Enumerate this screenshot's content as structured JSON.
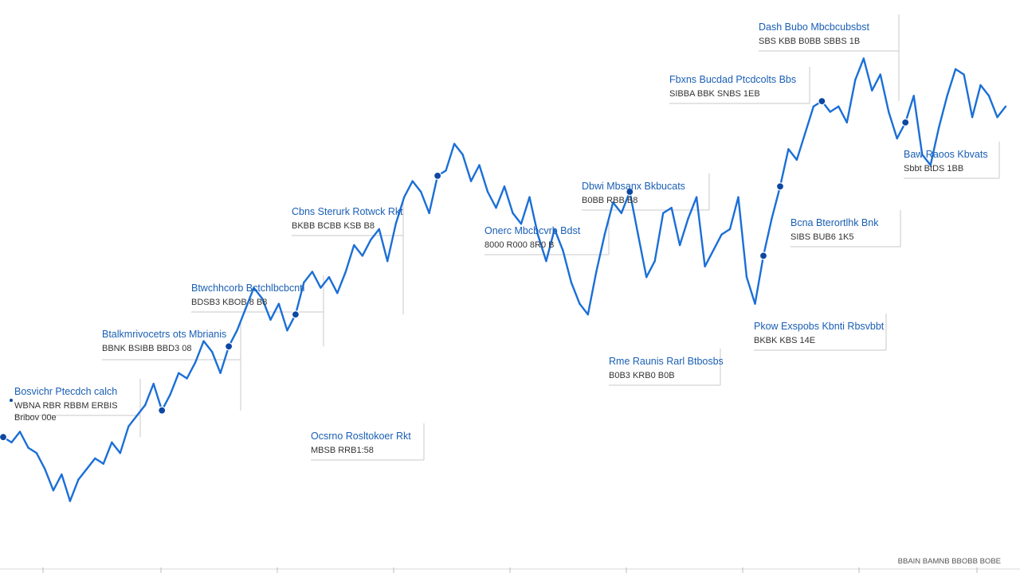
{
  "chart_data": {
    "type": "line",
    "title": "",
    "xlabel": "",
    "ylabel": "",
    "ylim": [
      0,
      100
    ],
    "grid": false,
    "colors": {
      "line": "#1a6fd6",
      "marker": "#0d47a1",
      "annotation_title": "#1a5fb4",
      "annotation_sub": "#333333"
    },
    "series": [
      {
        "name": "",
        "values": [
          24,
          23,
          25,
          22,
          21,
          18,
          14,
          17,
          12,
          16,
          18,
          20,
          19,
          23,
          21,
          26,
          28,
          30,
          34,
          29,
          32,
          36,
          35,
          38,
          42,
          40,
          36,
          41,
          44,
          48,
          52,
          50,
          46,
          49,
          44,
          47,
          53,
          55,
          52,
          54,
          51,
          55,
          60,
          58,
          61,
          63,
          57,
          64,
          69,
          72,
          70,
          66,
          73,
          74,
          79,
          77,
          72,
          75,
          70,
          67,
          71,
          66,
          64,
          69,
          62,
          57,
          63,
          59,
          53,
          49,
          47,
          55,
          62,
          68,
          66,
          70,
          62,
          54,
          57,
          66,
          67,
          60,
          65,
          69,
          56,
          59,
          62,
          63,
          69,
          54,
          49,
          58,
          65,
          71,
          78,
          76,
          81,
          86,
          87,
          85,
          86,
          83,
          91,
          95,
          89,
          92,
          85,
          80,
          83,
          88,
          77,
          75,
          82,
          88,
          93,
          92,
          84,
          90,
          88,
          84,
          86
        ]
      }
    ],
    "annotations": [
      {
        "title": "Bosvichr Ptecdch calch",
        "subtitle": "WBNA RBR RBBM ERBIS",
        "subtitle2": "Bribov 00e"
      },
      {
        "title": "Btalkmrivocetrs ots Mbrianis",
        "subtitle": "BBNK BSIBB BBD3 08"
      },
      {
        "title": "Btwchhcorb Bctchlbcbcnti",
        "subtitle": "BDSB3 KBOB 8 B8"
      },
      {
        "title": "Cbns Sterurk Rotwck Rkt",
        "subtitle": "BKBB BCBB KSB B8"
      },
      {
        "title": "Ocsrno Rosltokoer Rkt",
        "subtitle": "MBSB RRB1:58"
      },
      {
        "title": "Onerc Mbcbcvrb Bdst",
        "subtitle": "8000 R000 8R0 B"
      },
      {
        "title": "Dbwi Mbsanx Bkbucats",
        "subtitle": "B0BB RBB B8"
      },
      {
        "title": "Rme Raunis Rarl Btbosbs",
        "subtitle": "B0B3 KRB0 B0B"
      },
      {
        "title": "Bcna Bterortlhk Bnk",
        "subtitle": "SIBS BUB6 1K5"
      },
      {
        "title": "Pkow Exspobs Kbnti Rbsvbbt",
        "subtitle": "BKBK KBS 14E"
      },
      {
        "title": "Fbxns Bucdad Ptcdcolts Bbs",
        "subtitle": "SIBBA BBK SNBS 1EB"
      },
      {
        "title": "Dash Bubo Mbcbcubsbst",
        "subtitle": "SBS KBB B0BB SBBS 1B"
      },
      {
        "title": "Baw Raoos Kbvats",
        "subtitle": "Sbbt BtDS 1BB"
      }
    ]
  },
  "footer": {
    "source": "BBAIN BAMNB BBOBB BOBE"
  }
}
